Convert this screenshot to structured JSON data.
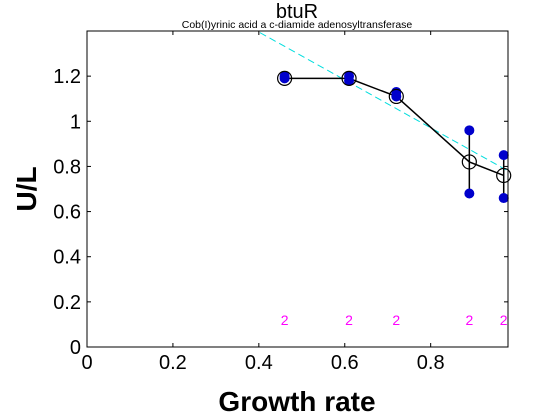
{
  "chart_data": {
    "type": "line",
    "title": "btuR",
    "subtitle": "Cob(I)yrinic acid a c-diamide adenosyltransferase",
    "xlabel": "Growth rate",
    "ylabel": "U/L",
    "xlim": [
      0,
      0.98
    ],
    "ylim": [
      0,
      1.4
    ],
    "x_ticks": [
      0,
      0.2,
      0.4,
      0.6,
      0.8
    ],
    "y_ticks": [
      0,
      0.2,
      0.4,
      0.6,
      0.8,
      1,
      1.2
    ],
    "x_tick_labels": [
      "0",
      "0.2",
      "0.4",
      "0.6",
      "0.8"
    ],
    "y_tick_labels": [
      "0",
      "0.2",
      "0.4",
      "0.6",
      "0.8",
      "1",
      "1.2"
    ],
    "grid": false,
    "series": [
      {
        "x": [
          0.46,
          0.61,
          0.72,
          0.89,
          0.97
        ],
        "mean": [
          1.19,
          1.19,
          1.11,
          0.82,
          0.76
        ],
        "upper": [
          1.2,
          1.2,
          1.13,
          0.96,
          0.85
        ],
        "lower": [
          1.19,
          1.18,
          1.11,
          0.68,
          0.66
        ],
        "counts": [
          "2",
          "2",
          "2",
          "2",
          "2"
        ],
        "color": "#000000",
        "point_color": "#0000cc"
      }
    ],
    "fit_line": {
      "x": [
        0,
        0.98
      ],
      "y": [
        1.82,
        0.78
      ],
      "color": "#00dddd"
    },
    "count_label_y": 0.12,
    "count_color": "#ff00ff"
  }
}
